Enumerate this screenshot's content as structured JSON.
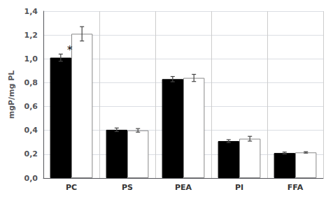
{
  "chart_data": {
    "type": "bar",
    "categories": [
      "PC",
      "PS",
      "PEA",
      "PI",
      "FFA"
    ],
    "series": [
      {
        "color": "#000000",
        "values": [
          1.01,
          0.405,
          0.83,
          0.31,
          0.21
        ],
        "errors": [
          0.03,
          0.015,
          0.022,
          0.012,
          0.008
        ]
      },
      {
        "color": "#ffffff",
        "values": [
          1.21,
          0.4,
          0.84,
          0.33,
          0.215
        ],
        "errors": [
          0.06,
          0.015,
          0.03,
          0.02,
          0.006
        ]
      }
    ],
    "ylabel": "mgP/mg PL",
    "ylim": [
      0.0,
      1.4
    ],
    "yticks": [
      {
        "value": 0.0,
        "label": "0,0"
      },
      {
        "value": 0.2,
        "label": "0,2"
      },
      {
        "value": 0.4,
        "label": "0,4"
      },
      {
        "value": 0.6,
        "label": "0,6"
      },
      {
        "value": 0.8,
        "label": "0,8"
      },
      {
        "value": 1.0,
        "label": "1,0"
      },
      {
        "value": 1.2,
        "label": "1,2"
      },
      {
        "value": 1.4,
        "label": "1,4"
      }
    ],
    "annotations": [
      {
        "text": "*",
        "category": "PC",
        "series": 0
      }
    ],
    "grid": true
  }
}
